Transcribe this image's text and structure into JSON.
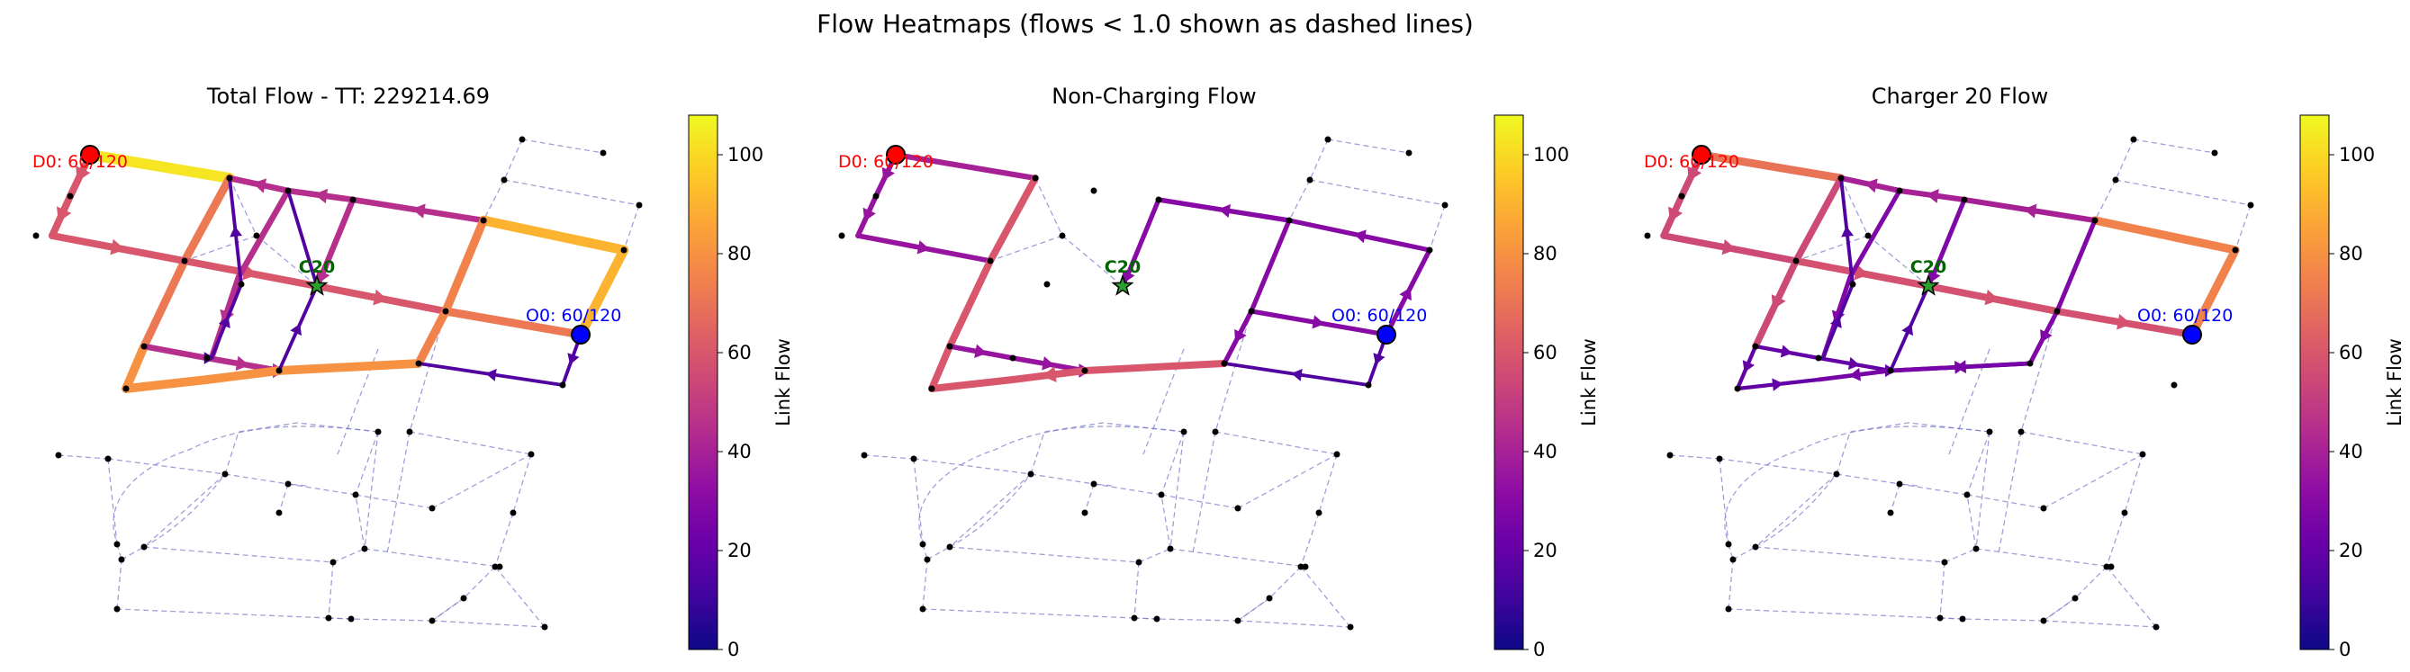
{
  "figure": {
    "suptitle": "Flow Heatmaps (flows < 1.0 shown as dashed lines)"
  },
  "colors": {
    "dashed_edge": "#8080cc",
    "node": "#000000",
    "origin": "#0000ff",
    "destination": "#ff0000",
    "charger": "#006400",
    "colormap": "plasma"
  },
  "labels": {
    "destination": "D0: 60/120",
    "origin": "O0: 60/120",
    "charger": "C20"
  },
  "chart_data": [
    {
      "type": "network-heatmap",
      "title": "Total Flow - TT: 229214.69",
      "colorbar": {
        "label": "Link Flow",
        "ticks": [
          0,
          20,
          40,
          60,
          80,
          100
        ],
        "range": [
          0,
          108
        ]
      },
      "edges": [
        {
          "id": "d-m1",
          "flow": 103,
          "arrow": false
        },
        {
          "id": "m1-n4",
          "flow": 72,
          "arrow": false
        },
        {
          "id": "d-a1",
          "flow": 60,
          "arrow": true
        },
        {
          "id": "a1-a2",
          "flow": 60,
          "arrow": true
        },
        {
          "id": "a2-a3",
          "flow": 60,
          "arrow": true
        },
        {
          "id": "a3-c20",
          "flow": 60,
          "arrow": true
        },
        {
          "id": "c20-n7",
          "flow": 60,
          "arrow": true
        },
        {
          "id": "n7-o",
          "flow": 72,
          "arrow": false
        },
        {
          "id": "o-b1",
          "flow": 90,
          "arrow": false
        },
        {
          "id": "b1-b2",
          "flow": 90,
          "arrow": false
        },
        {
          "id": "b2-b3",
          "flow": 45,
          "arrow": true
        },
        {
          "id": "b3-b4",
          "flow": 45,
          "arrow": true
        },
        {
          "id": "b4-n4",
          "flow": 45,
          "arrow": true
        },
        {
          "id": "b3-b5",
          "flow": 45,
          "arrow": true
        },
        {
          "id": "b5-s1",
          "flow": 75,
          "arrow": false
        },
        {
          "id": "b4-c1",
          "flow": 45,
          "arrow": true
        },
        {
          "id": "n4-s2",
          "flow": 80,
          "arrow": false
        },
        {
          "id": "s2-s3",
          "flow": 80,
          "arrow": false
        },
        {
          "id": "s3-s4",
          "flow": 45,
          "arrow": false
        },
        {
          "id": "s4-s5",
          "flow": 45,
          "arrow": true
        },
        {
          "id": "s5-s6",
          "flow": 45,
          "arrow": true
        },
        {
          "id": "s6-s7",
          "flow": 45,
          "arrow": false
        },
        {
          "id": "s1-c1",
          "flow": 80,
          "arrow": false
        },
        {
          "id": "c1-s6",
          "flow": 80,
          "arrow": false
        },
        {
          "id": "o-r1",
          "flow": 15,
          "arrow": true
        },
        {
          "id": "r1-s1",
          "flow": 15,
          "arrow": true
        },
        {
          "id": "s4-c2",
          "flow": 15,
          "arrow": true
        },
        {
          "id": "c2-n4",
          "flow": 15,
          "arrow": true
        },
        {
          "id": "c1-c20",
          "flow": 15,
          "arrow": true
        },
        {
          "id": "c20-b4",
          "flow": 15,
          "arrow": false
        },
        {
          "id": "s3-s4b",
          "flow": 15,
          "arrow": true
        }
      ]
    },
    {
      "type": "network-heatmap",
      "title": "Non-Charging Flow",
      "colorbar": {
        "label": "Link Flow",
        "ticks": [
          0,
          20,
          40,
          60,
          80,
          100
        ],
        "range": [
          0,
          108
        ]
      },
      "edges": [
        {
          "id": "d-a1",
          "flow": 35,
          "arrow": true
        },
        {
          "id": "a1-a2",
          "flow": 35,
          "arrow": true
        },
        {
          "id": "a2-a3",
          "flow": 35,
          "arrow": true
        },
        {
          "id": "d-m1",
          "flow": 40,
          "arrow": false
        },
        {
          "id": "m1-n4",
          "flow": 60,
          "arrow": false
        },
        {
          "id": "n4-s2",
          "flow": 60,
          "arrow": false
        },
        {
          "id": "s2-s3",
          "flow": 60,
          "arrow": false
        },
        {
          "id": "s3-s4",
          "flow": 35,
          "arrow": true
        },
        {
          "id": "s4-s5",
          "flow": 35,
          "arrow": true
        },
        {
          "id": "s5-s6",
          "flow": 35,
          "arrow": true
        },
        {
          "id": "s6-s7",
          "flow": 35,
          "arrow": false
        },
        {
          "id": "s1-c1",
          "flow": 60,
          "arrow": false
        },
        {
          "id": "c1-s6",
          "flow": 60,
          "arrow": true
        },
        {
          "id": "o-b1",
          "flow": 30,
          "arrow": true
        },
        {
          "id": "b1-b2",
          "flow": 30,
          "arrow": true
        },
        {
          "id": "b2-b3",
          "flow": 30,
          "arrow": true
        },
        {
          "id": "b3-b5",
          "flow": 30,
          "arrow": true
        },
        {
          "id": "b5-s1",
          "flow": 30,
          "arrow": true
        },
        {
          "id": "n7-o",
          "flow": 30,
          "arrow": true
        },
        {
          "id": "b3-n7",
          "flow": 30,
          "arrow": false
        },
        {
          "id": "o-r1",
          "flow": 15,
          "arrow": true
        },
        {
          "id": "r1-s1",
          "flow": 15,
          "arrow": true
        }
      ]
    },
    {
      "type": "network-heatmap",
      "title": "Charger 20 Flow",
      "colorbar": {
        "label": "Link Flow",
        "ticks": [
          0,
          20,
          40,
          60,
          80,
          100
        ],
        "range": [
          0,
          108
        ]
      },
      "edges": [
        {
          "id": "d-m1",
          "flow": 70,
          "arrow": false
        },
        {
          "id": "d-a1",
          "flow": 55,
          "arrow": true
        },
        {
          "id": "a1-a2",
          "flow": 55,
          "arrow": true
        },
        {
          "id": "a2-a3",
          "flow": 55,
          "arrow": true
        },
        {
          "id": "m1-n4",
          "flow": 55,
          "arrow": true
        },
        {
          "id": "a3-c20",
          "flow": 58,
          "arrow": true
        },
        {
          "id": "c20-n7",
          "flow": 58,
          "arrow": true
        },
        {
          "id": "n7-o",
          "flow": 58,
          "arrow": true
        },
        {
          "id": "o-b1",
          "flow": 75,
          "arrow": false
        },
        {
          "id": "b1-b2",
          "flow": 75,
          "arrow": false
        },
        {
          "id": "b2-b3",
          "flow": 40,
          "arrow": true
        },
        {
          "id": "b3-b4",
          "flow": 40,
          "arrow": true
        },
        {
          "id": "b4-n4",
          "flow": 40,
          "arrow": true
        },
        {
          "id": "b3-b5",
          "flow": 28,
          "arrow": true
        },
        {
          "id": "b5-s1",
          "flow": 28,
          "arrow": true
        },
        {
          "id": "b4-c1",
          "flow": 28,
          "arrow": true
        },
        {
          "id": "c1-c20",
          "flow": 15,
          "arrow": true
        },
        {
          "id": "n4-s2",
          "flow": 20,
          "arrow": true
        },
        {
          "id": "s2-s3",
          "flow": 20,
          "arrow": true
        },
        {
          "id": "s3-s4",
          "flow": 20,
          "arrow": true
        },
        {
          "id": "s4-s5",
          "flow": 20,
          "arrow": true
        },
        {
          "id": "s5-s6",
          "flow": 20,
          "arrow": true
        },
        {
          "id": "s6-s7",
          "flow": 25,
          "arrow": true
        },
        {
          "id": "s1-c1",
          "flow": 25,
          "arrow": true
        },
        {
          "id": "c1-s6",
          "flow": 25,
          "arrow": true
        },
        {
          "id": "c2-n4",
          "flow": 15,
          "arrow": true
        },
        {
          "id": "s4-c2",
          "flow": 15,
          "arrow": true
        }
      ]
    }
  ]
}
